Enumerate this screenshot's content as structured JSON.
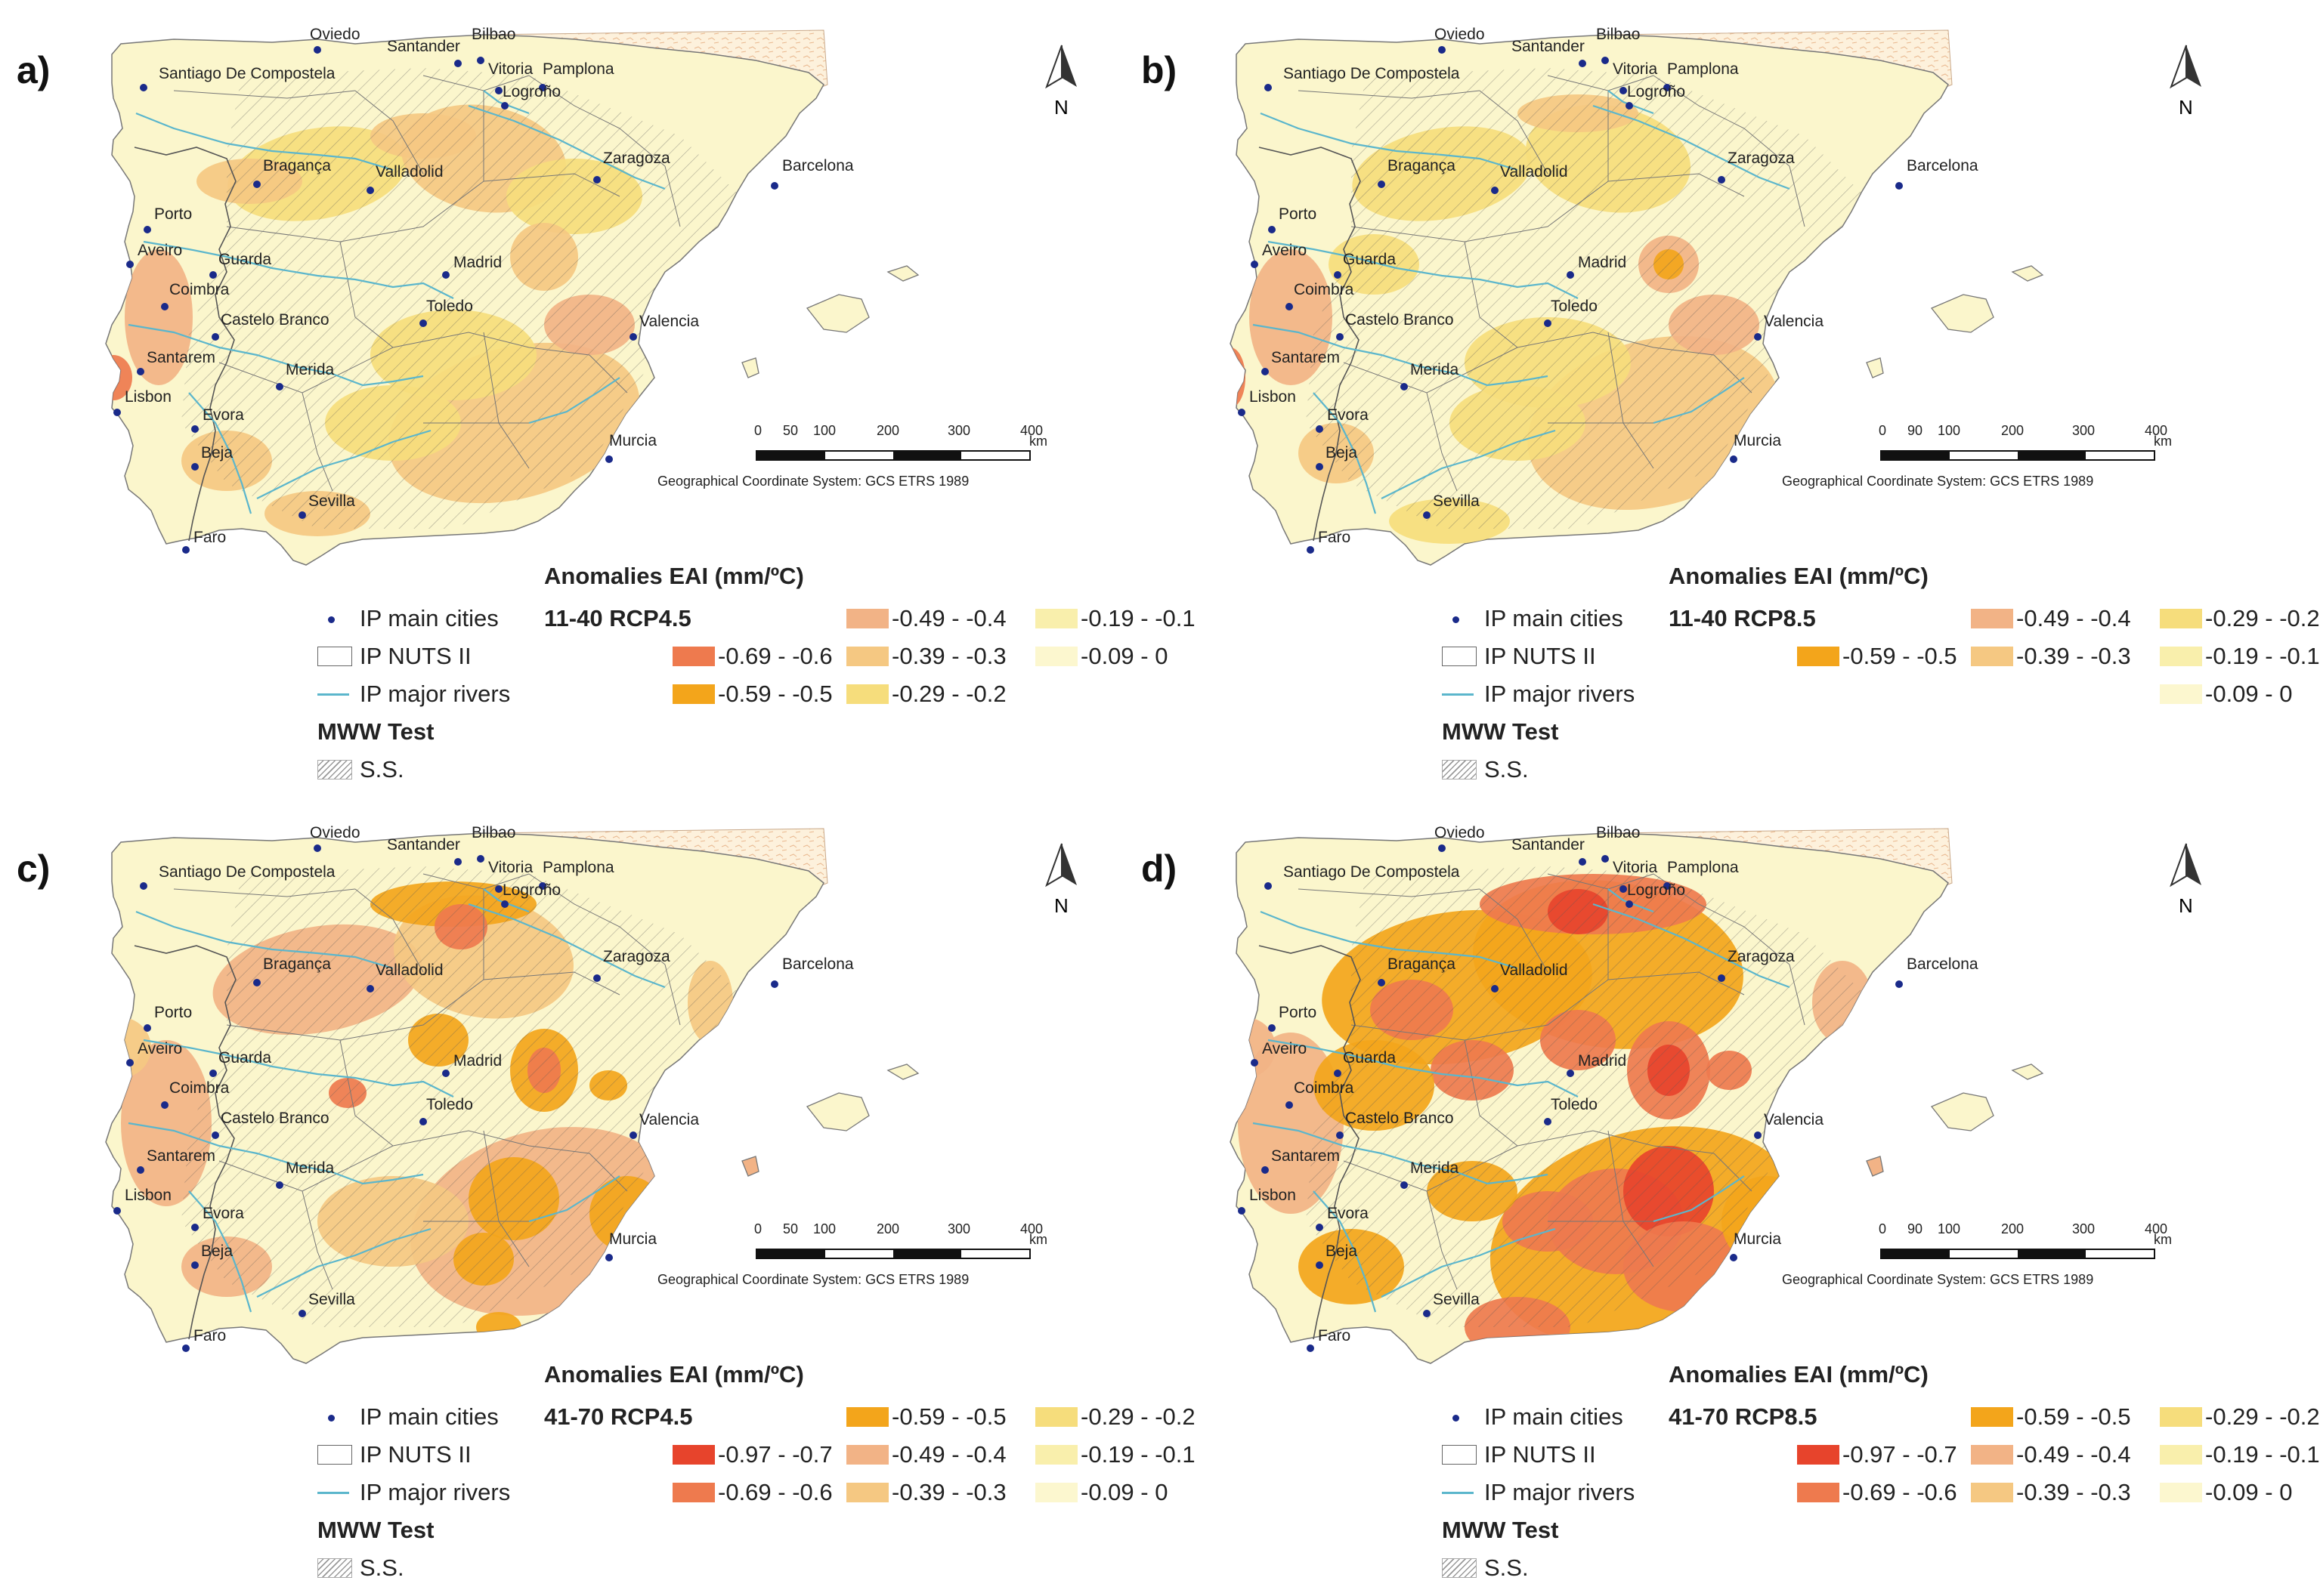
{
  "colors": {
    "land_base": "#fbf6cc",
    "sea": "#ffffff",
    "border": "#777777",
    "river": "#5bb6cc",
    "city_dot": "#1a2a8a",
    "cls_0": "#fcf7cf",
    "cls_01": "#f9efac",
    "cls_02": "#f6dd7c",
    "cls_03": "#f5c882",
    "cls_04": "#f2b386",
    "cls_05": "#f3a51b",
    "cls_06": "#ee7a4e",
    "cls_07": "#e7442c"
  },
  "cities": [
    "Oviedo",
    "Bilbao",
    "Santander",
    "Vitoria",
    "Pamplona",
    "Santiago De Compostela",
    "Logroño",
    "Zaragoza",
    "Barcelona",
    "Bragança",
    "Valladolid",
    "Porto",
    "Aveiro",
    "Guarda",
    "Coimbra",
    "Madrid",
    "Castelo Branco",
    "Toledo",
    "Valencia",
    "Santarem",
    "Lisbon",
    "Merida",
    "Evora",
    "Beja",
    "Murcia",
    "Sevilla",
    "Faro"
  ],
  "north_label": "N",
  "scale_km_unit": "km",
  "coord_system": "Geographical Coordinate System: GCS ETRS 1989",
  "legend_title": "Anomalies EAI (mm/ºC)",
  "legend_ref": {
    "cities": "IP main cities",
    "nuts": "IP NUTS II",
    "rivers": "IP major rivers",
    "test": "MWW Test",
    "ss": "S.S."
  },
  "panels": [
    {
      "letter": "a)",
      "period": "11-40 RCP4.5",
      "scale_ticks": [
        "0",
        "50",
        "100",
        "200",
        "300",
        "400"
      ],
      "classes": [
        {
          "label": "-0.69 - -0.6",
          "color": "cls_06"
        },
        {
          "label": "-0.59 - -0.5",
          "color": "cls_05"
        },
        {
          "label": "-0.49 - -0.4",
          "color": "cls_04"
        },
        {
          "label": "-0.39 - -0.3",
          "color": "cls_03"
        },
        {
          "label": "-0.29 - -0.2",
          "color": "cls_02"
        },
        {
          "label": "-0.19 - -0.1",
          "color": "cls_01"
        },
        {
          "label": "-0.09 - 0",
          "color": "cls_0"
        }
      ]
    },
    {
      "letter": "b)",
      "period": "11-40 RCP8.5",
      "scale_ticks": [
        "0",
        "90",
        "100",
        "200",
        "300",
        "400"
      ],
      "classes": [
        {
          "label": "-0.59 - -0.5",
          "color": "cls_05"
        },
        {
          "label": "-0.49 - -0.4",
          "color": "cls_04"
        },
        {
          "label": "-0.39 - -0.3",
          "color": "cls_03"
        },
        {
          "label": "-0.29 - -0.2",
          "color": "cls_02"
        },
        {
          "label": "-0.19 - -0.1",
          "color": "cls_01"
        },
        {
          "label": "-0.09 - 0",
          "color": "cls_0"
        }
      ]
    },
    {
      "letter": "c)",
      "period": "41-70 RCP4.5",
      "scale_ticks": [
        "0",
        "50",
        "100",
        "200",
        "300",
        "400"
      ],
      "classes": [
        {
          "label": "-0.97 - -0.7",
          "color": "cls_07"
        },
        {
          "label": "-0.69 - -0.6",
          "color": "cls_06"
        },
        {
          "label": "-0.59 - -0.5",
          "color": "cls_05"
        },
        {
          "label": "-0.49 - -0.4",
          "color": "cls_04"
        },
        {
          "label": "-0.39 - -0.3",
          "color": "cls_03"
        },
        {
          "label": "-0.29 - -0.2",
          "color": "cls_02"
        },
        {
          "label": "-0.19 - -0.1",
          "color": "cls_01"
        },
        {
          "label": "-0.09 - 0",
          "color": "cls_0"
        }
      ]
    },
    {
      "letter": "d)",
      "period": "41-70 RCP8.5",
      "scale_ticks": [
        "0",
        "90",
        "100",
        "200",
        "300",
        "400"
      ],
      "classes": [
        {
          "label": "-0.97 - -0.7",
          "color": "cls_07"
        },
        {
          "label": "-0.69 - -0.6",
          "color": "cls_06"
        },
        {
          "label": "-0.59 - -0.5",
          "color": "cls_05"
        },
        {
          "label": "-0.49 - -0.4",
          "color": "cls_04"
        },
        {
          "label": "-0.39 - -0.3",
          "color": "cls_03"
        },
        {
          "label": "-0.29 - -0.2",
          "color": "cls_02"
        },
        {
          "label": "-0.19 - -0.1",
          "color": "cls_01"
        },
        {
          "label": "-0.09 - 0",
          "color": "cls_0"
        }
      ]
    }
  ]
}
